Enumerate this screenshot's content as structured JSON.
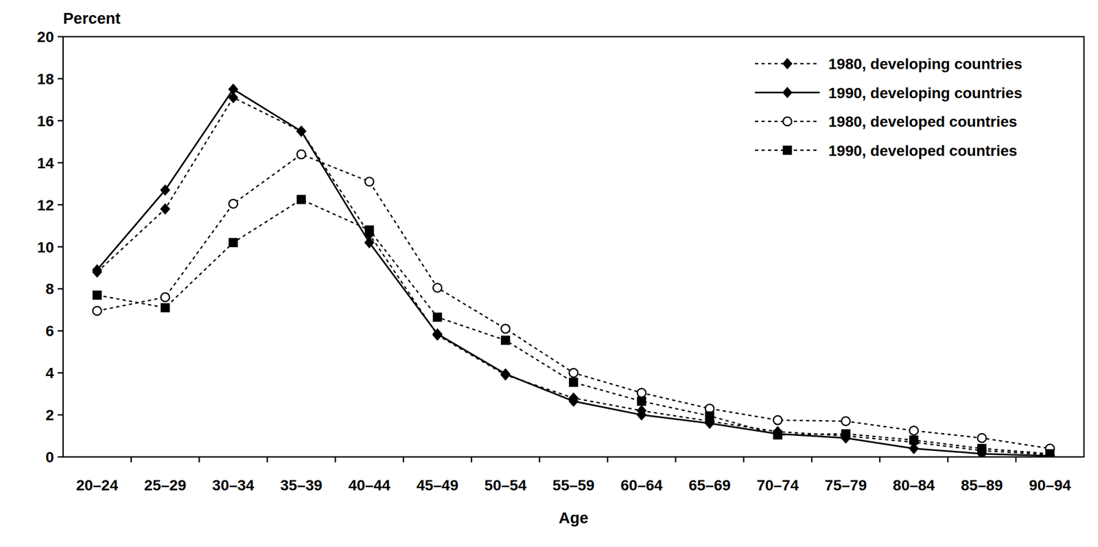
{
  "chart_data": {
    "type": "line",
    "y_label": "Percent",
    "x_label": "Age",
    "categories": [
      "20–24",
      "25–29",
      "30–34",
      "35–39",
      "40–44",
      "45–49",
      "50–54",
      "55–59",
      "60–64",
      "65–69",
      "70–74",
      "75–79",
      "80–84",
      "85–89",
      "90–94"
    ],
    "ylim": [
      0,
      20
    ],
    "yticks": [
      0,
      2,
      4,
      6,
      8,
      10,
      12,
      14,
      16,
      18,
      20
    ],
    "grid": false,
    "legend": "top-right",
    "series": [
      {
        "name": "1980, developing countries",
        "color": "#000000",
        "marker": "diamond",
        "line_style": "dotted",
        "values": [
          8.8,
          11.8,
          17.1,
          15.5,
          10.6,
          5.8,
          3.9,
          2.8,
          2.2,
          1.7,
          1.2,
          1.0,
          0.7,
          0.3,
          0.1
        ]
      },
      {
        "name": "1990, developing countries",
        "color": "#000000",
        "marker": "diamond",
        "line_style": "solid",
        "values": [
          8.9,
          12.7,
          17.5,
          15.5,
          10.2,
          5.85,
          3.95,
          2.65,
          2.0,
          1.6,
          1.1,
          0.9,
          0.4,
          0.15,
          0.05
        ]
      },
      {
        "name": "1980, developed countries",
        "color": "#000000",
        "marker": "circle-open",
        "line_style": "dotted",
        "values": [
          6.95,
          7.6,
          12.05,
          14.4,
          13.1,
          8.05,
          6.1,
          4.0,
          3.05,
          2.3,
          1.75,
          1.7,
          1.25,
          0.9,
          0.4
        ]
      },
      {
        "name": "1990, developed countries",
        "color": "#000000",
        "marker": "square",
        "line_style": "dotted",
        "values": [
          7.7,
          7.1,
          10.2,
          12.25,
          10.8,
          6.65,
          5.55,
          3.55,
          2.65,
          1.95,
          1.05,
          1.1,
          0.8,
          0.4,
          0.15
        ]
      }
    ]
  }
}
